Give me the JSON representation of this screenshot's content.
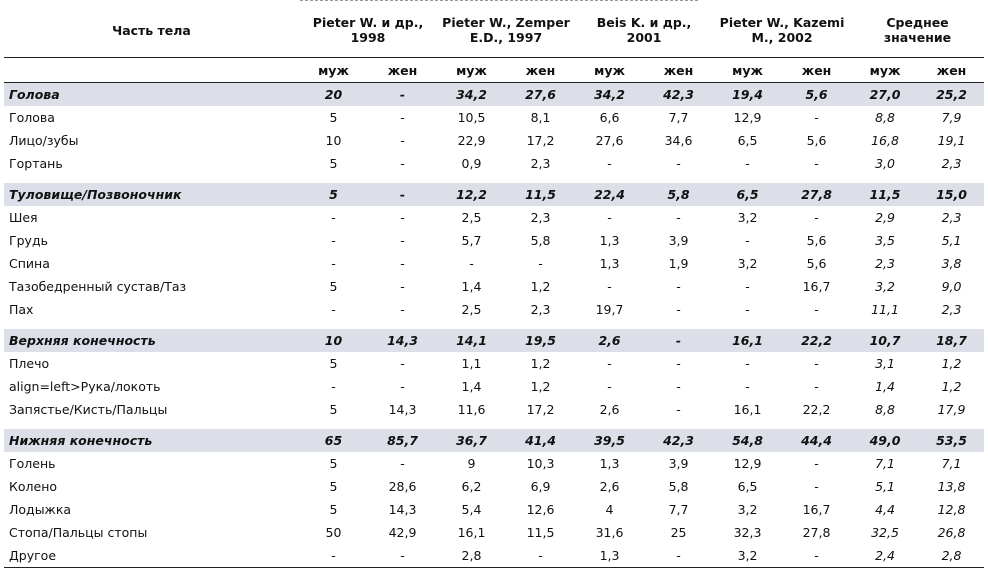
{
  "header": {
    "part_label": "Часть тела",
    "studies": [
      "Pieter W. и др., 1998",
      "Pieter W., Zemper E.D., 1997",
      "Beis K. и др., 2001",
      "Pieter W., Kazemi M., 2002",
      "Среднее значение"
    ],
    "male": "муж",
    "female": "жен"
  },
  "sections": [
    {
      "name": "Голова",
      "values": [
        "20",
        "-",
        "34,2",
        "27,6",
        "34,2",
        "42,3",
        "19,4",
        "5,6",
        "27,0",
        "25,2"
      ],
      "rows": [
        {
          "name": "Голова",
          "values": [
            "5",
            "-",
            "10,5",
            "8,1",
            "6,6",
            "7,7",
            "12,9",
            "-",
            "8,8",
            "7,9"
          ]
        },
        {
          "name": "Лицо/зубы",
          "values": [
            "10",
            "-",
            "22,9",
            "17,2",
            "27,6",
            "34,6",
            "6,5",
            "5,6",
            "16,8",
            "19,1"
          ]
        },
        {
          "name": "Гортань",
          "values": [
            "5",
            "-",
            "0,9",
            "2,3",
            "-",
            "-",
            "-",
            "-",
            "3,0",
            "2,3"
          ]
        }
      ]
    },
    {
      "name": "Туловище/Позвоночник",
      "values": [
        "5",
        "-",
        "12,2",
        "11,5",
        "22,4",
        "5,8",
        "6,5",
        "27,8",
        "11,5",
        "15,0"
      ],
      "rows": [
        {
          "name": "Шея",
          "values": [
            "-",
            "-",
            "2,5",
            "2,3",
            "-",
            "-",
            "3,2",
            "-",
            "2,9",
            "2,3"
          ]
        },
        {
          "name": "Грудь",
          "values": [
            "-",
            "-",
            "5,7",
            "5,8",
            "1,3",
            "3,9",
            "-",
            "5,6",
            "3,5",
            "5,1"
          ]
        },
        {
          "name": "Спина",
          "values": [
            "-",
            "-",
            "-",
            "-",
            "1,3",
            "1,9",
            "3,2",
            "5,6",
            "2,3",
            "3,8"
          ]
        },
        {
          "name": "Тазобедренный сустав/Таз",
          "values": [
            "5",
            "-",
            "1,4",
            "1,2",
            "-",
            "-",
            "-",
            "16,7",
            "3,2",
            "9,0"
          ]
        },
        {
          "name": "Пах",
          "values": [
            "-",
            "-",
            "2,5",
            "2,3",
            "19,7",
            "-",
            "-",
            "-",
            "11,1",
            "2,3"
          ]
        }
      ]
    },
    {
      "name": "Верхняя конечность",
      "values": [
        "10",
        "14,3",
        "14,1",
        "19,5",
        "2,6",
        "-",
        "16,1",
        "22,2",
        "10,7",
        "18,7"
      ],
      "rows": [
        {
          "name": "Плечо",
          "values": [
            "5",
            "-",
            "1,1",
            "1,2",
            "-",
            "-",
            "-",
            "-",
            "3,1",
            "1,2"
          ]
        },
        {
          "name": "align=left>Рука/локоть",
          "values": [
            "-",
            "-",
            "1,4",
            "1,2",
            "-",
            "-",
            "-",
            "-",
            "1,4",
            "1,2"
          ]
        },
        {
          "name": "Запястье/Кисть/Пальцы",
          "values": [
            "5",
            "14,3",
            "11,6",
            "17,2",
            "2,6",
            "-",
            "16,1",
            "22,2",
            "8,8",
            "17,9"
          ]
        }
      ]
    },
    {
      "name": "Нижняя конечность",
      "values": [
        "65",
        "85,7",
        "36,7",
        "41,4",
        "39,5",
        "42,3",
        "54,8",
        "44,4",
        "49,0",
        "53,5"
      ],
      "rows": [
        {
          "name": "Голень",
          "values": [
            "5",
            "-",
            "9",
            "10,3",
            "1,3",
            "3,9",
            "12,9",
            "-",
            "7,1",
            "7,1"
          ]
        },
        {
          "name": "Колено",
          "values": [
            "5",
            "28,6",
            "6,2",
            "6,9",
            "2,6",
            "5,8",
            "6,5",
            "-",
            "5,1",
            "13,8"
          ]
        },
        {
          "name": "Лодыжка",
          "values": [
            "5",
            "14,3",
            "5,4",
            "12,6",
            "4",
            "7,7",
            "3,2",
            "16,7",
            "4,4",
            "12,8"
          ]
        },
        {
          "name": "Стопа/Пальцы стопы",
          "values": [
            "50",
            "42,9",
            "16,1",
            "11,5",
            "31,6",
            "25",
            "32,3",
            "27,8",
            "32,5",
            "26,8"
          ]
        },
        {
          "name": "Другое",
          "values": [
            "-",
            "-",
            "2,8",
            "-",
            "1,3",
            "-",
            "3,2",
            "-",
            "2,4",
            "2,8"
          ]
        }
      ]
    }
  ],
  "colors": {
    "section_bg": "#dcdfe8",
    "rule": "#222222"
  }
}
